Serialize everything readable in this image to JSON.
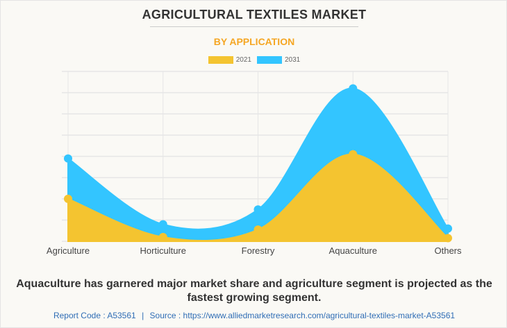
{
  "title": "AGRICULTURAL TEXTILES MARKET",
  "subtitle": "BY APPLICATION",
  "caption": "Aquaculture has garnered major market share and agriculture segment is projected as the fastest growing segment.",
  "footer": {
    "report_code": "Report Code : A53561",
    "separator": "|",
    "source": "Source : https://www.alliedmarketresearch.com/agricultural-textiles-market-A53561"
  },
  "colors": {
    "2021": "#f4c430",
    "2031": "#33c5ff",
    "grid": "#e6e6e6"
  },
  "chart_data": {
    "type": "area",
    "title": "AGRICULTURAL TEXTILES MARKET",
    "subtitle": "BY APPLICATION",
    "categories": [
      "Agriculture",
      "Horticulture",
      "Forestry",
      "Aquaculture",
      "Others"
    ],
    "series": [
      {
        "name": "2021",
        "values": [
          2.0,
          0.2,
          0.55,
          4.1,
          0.15
        ]
      },
      {
        "name": "2031",
        "values": [
          3.9,
          0.8,
          1.5,
          7.2,
          0.6
        ]
      }
    ],
    "ylim": [
      0,
      8
    ],
    "y_gridlines": 8,
    "y_tick_labels_shown": false,
    "grid": true,
    "legend": "top-center",
    "xlabel": "",
    "ylabel": ""
  }
}
